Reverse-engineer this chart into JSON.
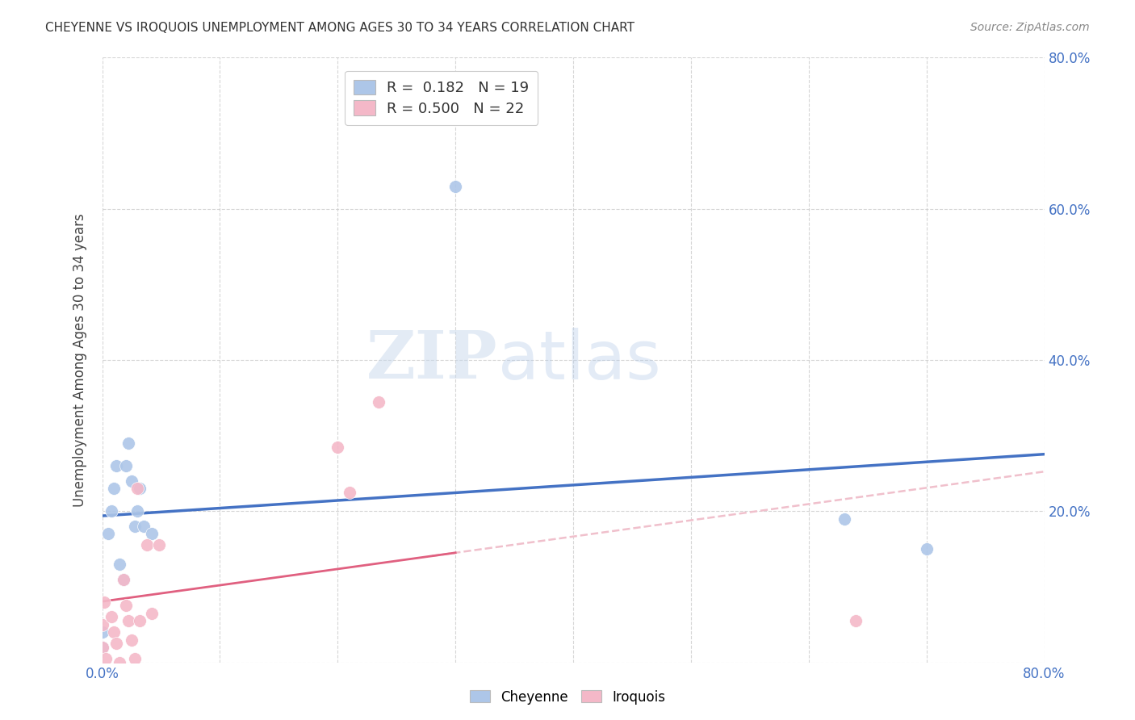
{
  "title": "CHEYENNE VS IROQUOIS UNEMPLOYMENT AMONG AGES 30 TO 34 YEARS CORRELATION CHART",
  "source": "Source: ZipAtlas.com",
  "ylabel": "Unemployment Among Ages 30 to 34 years",
  "xlim": [
    0,
    0.8
  ],
  "ylim": [
    0,
    0.8
  ],
  "background_color": "#ffffff",
  "watermark_zip": "ZIP",
  "watermark_atlas": "atlas",
  "cheyenne_color": "#adc6e8",
  "iroquois_color": "#f4b8c8",
  "cheyenne_line_color": "#4472c4",
  "iroquois_line_color": "#e06080",
  "iroquois_dash_color": "#f0c0cc",
  "cheyenne_R": 0.182,
  "cheyenne_N": 19,
  "iroquois_R": 0.5,
  "iroquois_N": 22,
  "cheyenne_x": [
    0.0,
    0.0,
    0.005,
    0.008,
    0.01,
    0.012,
    0.015,
    0.018,
    0.02,
    0.022,
    0.025,
    0.028,
    0.03,
    0.032,
    0.035,
    0.042,
    0.3,
    0.63,
    0.7
  ],
  "cheyenne_y": [
    0.04,
    0.02,
    0.17,
    0.2,
    0.23,
    0.26,
    0.13,
    0.11,
    0.26,
    0.29,
    0.24,
    0.18,
    0.2,
    0.23,
    0.18,
    0.17,
    0.63,
    0.19,
    0.15
  ],
  "iroquois_x": [
    0.0,
    0.0,
    0.002,
    0.003,
    0.008,
    0.01,
    0.012,
    0.015,
    0.018,
    0.02,
    0.022,
    0.025,
    0.028,
    0.03,
    0.032,
    0.038,
    0.042,
    0.048,
    0.2,
    0.21,
    0.235,
    0.64
  ],
  "iroquois_y": [
    0.02,
    0.05,
    0.08,
    0.005,
    0.06,
    0.04,
    0.025,
    0.0,
    0.11,
    0.075,
    0.055,
    0.03,
    0.005,
    0.23,
    0.055,
    0.155,
    0.065,
    0.155,
    0.285,
    0.225,
    0.345,
    0.055
  ],
  "right_ytick_positions": [
    0.2,
    0.4,
    0.6,
    0.8
  ],
  "right_ytick_labels": [
    "20.0%",
    "40.0%",
    "60.0%",
    "80.0%"
  ],
  "xtick_positions": [
    0.0,
    0.1,
    0.2,
    0.3,
    0.4,
    0.5,
    0.6,
    0.7,
    0.8
  ],
  "xtick_labels": [
    "0.0%",
    "",
    "",
    "",
    "",
    "",
    "",
    "",
    "80.0%"
  ]
}
